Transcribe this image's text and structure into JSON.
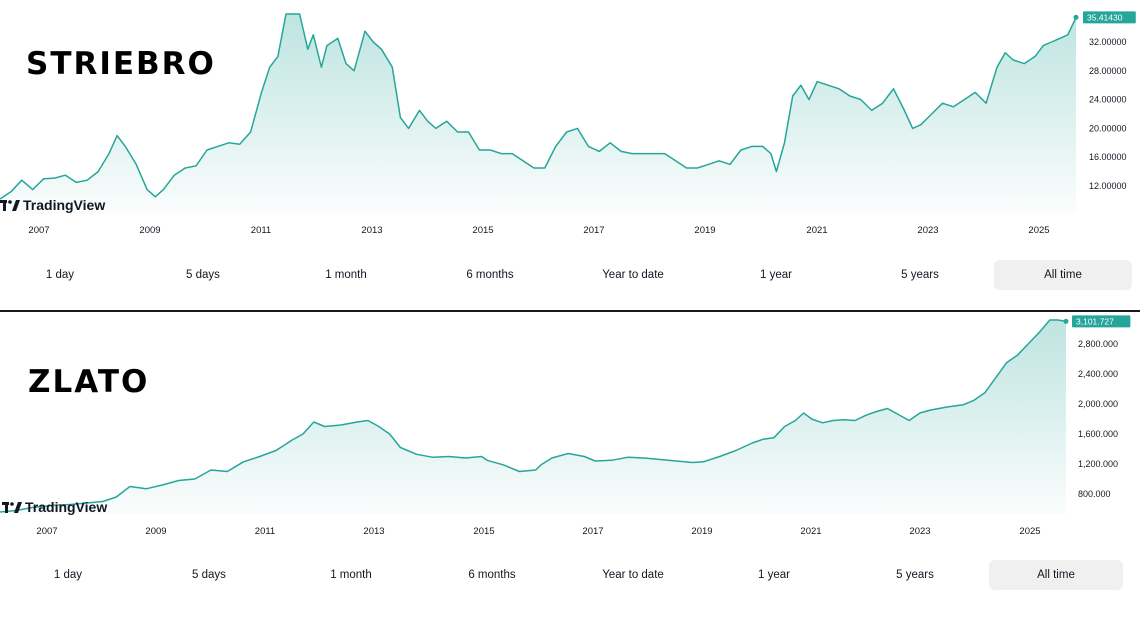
{
  "silver": {
    "heading": "STRIEBRO",
    "logo_text": "TradingView",
    "ranges": [
      "1 day",
      "5 days",
      "1 month",
      "6 months",
      "Year to date",
      "1 year",
      "5 years",
      "All time"
    ],
    "active_range": "All time"
  },
  "gold": {
    "heading": "ZLATO",
    "logo_text": "TradingView",
    "ranges": [
      "1 day",
      "5 days",
      "1 month",
      "6 months",
      "Year to date",
      "1 year",
      "5 years",
      "All time"
    ],
    "active_range": "All time"
  },
  "colors": {
    "line": "#26a69a",
    "fill": "#26a69a",
    "badge": "#26a69a"
  },
  "chart_data": [
    {
      "type": "area",
      "series": [
        {
          "x": [
            2006.0,
            2006.2,
            2006.4,
            2006.6,
            2006.8,
            2007.0,
            2007.2,
            2007.4,
            2007.6,
            2007.8,
            2008.0,
            2008.15,
            2008.3,
            2008.5,
            2008.7,
            2008.85,
            2009.0,
            2009.2,
            2009.4,
            2009.6,
            2009.8,
            2010.0,
            2010.2,
            2010.4,
            2010.6,
            2010.8,
            2010.95,
            2011.1,
            2011.25,
            2011.35,
            2011.5,
            2011.65,
            2011.75,
            2011.9,
            2012.0,
            2012.2,
            2012.35,
            2012.5,
            2012.7,
            2012.85,
            2013.0,
            2013.2,
            2013.35,
            2013.5,
            2013.7,
            2013.85,
            2014.0,
            2014.2,
            2014.4,
            2014.6,
            2014.8,
            2015.0,
            2015.2,
            2015.4,
            2015.6,
            2015.8,
            2016.0,
            2016.2,
            2016.4,
            2016.6,
            2016.8,
            2017.0,
            2017.2,
            2017.4,
            2017.6,
            2017.8,
            2018.0,
            2018.2,
            2018.4,
            2018.6,
            2018.8,
            2019.0,
            2019.2,
            2019.4,
            2019.6,
            2019.8,
            2020.0,
            2020.15,
            2020.25,
            2020.4,
            2020.55,
            2020.7,
            2020.85,
            2021.0,
            2021.2,
            2021.4,
            2021.6,
            2021.8,
            2022.0,
            2022.2,
            2022.4,
            2022.6,
            2022.75,
            2022.9,
            2023.1,
            2023.3,
            2023.5,
            2023.7,
            2023.9,
            2024.1,
            2024.3,
            2024.45,
            2024.6,
            2024.8,
            2025.0,
            2025.15,
            2025.3,
            2025.45,
            2025.6,
            2025.75
          ],
          "values": [
            10.2,
            11.2,
            12.8,
            11.5,
            13.0,
            13.1,
            13.5,
            12.5,
            12.8,
            14.0,
            16.5,
            19.0,
            17.5,
            15.0,
            11.5,
            10.5,
            11.5,
            13.5,
            14.5,
            14.8,
            17.0,
            17.5,
            18.0,
            17.8,
            19.5,
            25.0,
            28.5,
            30.0,
            40.0,
            37.0,
            38.5,
            31.0,
            33.0,
            28.5,
            31.5,
            32.5,
            29.0,
            28.0,
            33.5,
            32.0,
            31.0,
            28.5,
            21.5,
            20.0,
            22.5,
            21.0,
            20.0,
            21.0,
            19.5,
            19.5,
            17.0,
            17.0,
            16.5,
            16.5,
            15.5,
            14.5,
            14.5,
            17.5,
            19.5,
            20.0,
            17.5,
            16.8,
            18.0,
            16.8,
            16.5,
            16.5,
            16.5,
            16.5,
            15.5,
            14.5,
            14.5,
            15.0,
            15.5,
            15.0,
            17.0,
            17.5,
            17.5,
            16.5,
            14.0,
            18.0,
            24.5,
            26.0,
            24.0,
            26.5,
            26.0,
            25.5,
            24.5,
            24.0,
            22.5,
            23.5,
            25.5,
            22.5,
            20.0,
            20.5,
            22.0,
            23.5,
            23.0,
            24.0,
            25.0,
            23.5,
            28.5,
            30.5,
            29.5,
            29.0,
            30.0,
            31.5,
            32.0,
            32.5,
            33.0,
            35.4143
          ]
        }
      ],
      "yaxis_ticks": [
        "12.00000",
        "16.00000",
        "20.00000",
        "24.00000",
        "28.00000",
        "32.00000"
      ],
      "last_value_label": "35.41430",
      "x_ticks": [
        "2007",
        "2009",
        "2011",
        "2013",
        "2015",
        "2017",
        "2019",
        "2021",
        "2023",
        "2025"
      ],
      "grid": false
    },
    {
      "type": "area",
      "series": [
        {
          "x": [
            2006.0,
            2006.3,
            2006.6,
            2007.0,
            2007.3,
            2007.6,
            2007.9,
            2008.15,
            2008.4,
            2008.7,
            2009.0,
            2009.3,
            2009.6,
            2009.9,
            2010.2,
            2010.5,
            2010.8,
            2011.1,
            2011.4,
            2011.6,
            2011.8,
            2012.0,
            2012.3,
            2012.6,
            2012.8,
            2013.0,
            2013.2,
            2013.4,
            2013.7,
            2014.0,
            2014.3,
            2014.6,
            2014.9,
            2015.0,
            2015.3,
            2015.6,
            2015.9,
            2016.0,
            2016.2,
            2016.5,
            2016.8,
            2017.0,
            2017.3,
            2017.6,
            2017.9,
            2018.2,
            2018.5,
            2018.8,
            2019.0,
            2019.3,
            2019.6,
            2019.9,
            2020.1,
            2020.3,
            2020.5,
            2020.7,
            2020.85,
            2021.0,
            2021.2,
            2021.4,
            2021.6,
            2021.8,
            2022.0,
            2022.2,
            2022.4,
            2022.6,
            2022.8,
            2023.0,
            2023.2,
            2023.5,
            2023.8,
            2024.0,
            2024.2,
            2024.4,
            2024.6,
            2024.8,
            2025.0,
            2025.2,
            2025.4,
            2025.55,
            2025.7
          ],
          "values": [
            560,
            580,
            620,
            650,
            660,
            680,
            700,
            760,
            900,
            870,
            920,
            980,
            1000,
            1120,
            1100,
            1230,
            1300,
            1380,
            1520,
            1600,
            1760,
            1700,
            1720,
            1760,
            1780,
            1700,
            1600,
            1420,
            1330,
            1290,
            1300,
            1280,
            1300,
            1250,
            1190,
            1100,
            1120,
            1190,
            1280,
            1340,
            1300,
            1240,
            1250,
            1290,
            1280,
            1260,
            1240,
            1220,
            1230,
            1300,
            1380,
            1480,
            1530,
            1550,
            1700,
            1780,
            1880,
            1800,
            1750,
            1780,
            1790,
            1780,
            1850,
            1900,
            1940,
            1860,
            1780,
            1880,
            1920,
            1960,
            1990,
            2050,
            2150,
            2350,
            2550,
            2650,
            2800,
            2950,
            3200,
            3300,
            3101.727
          ]
        }
      ],
      "yaxis_ticks": [
        "800.000",
        "1,200.000",
        "1,600.000",
        "2,000.000",
        "2,400.000",
        "2,800.000"
      ],
      "last_value_label": "3,101.727",
      "x_ticks": [
        "2007",
        "2009",
        "2011",
        "2013",
        "2015",
        "2017",
        "2019",
        "2021",
        "2023",
        "2025"
      ],
      "grid": false
    }
  ]
}
